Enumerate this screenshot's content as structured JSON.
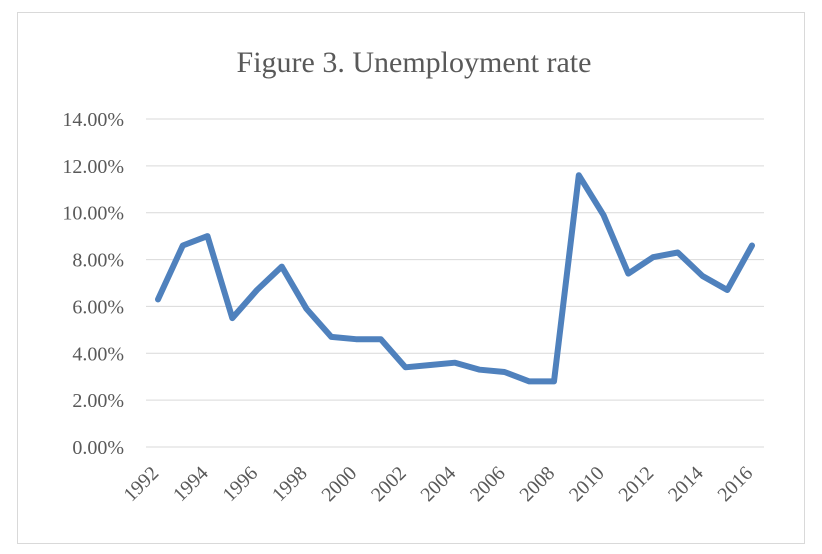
{
  "chart_data": {
    "type": "line",
    "title": "Figure 3. Unemployment rate",
    "xlabel": "",
    "ylabel": "",
    "ylim": [
      0,
      0.14
    ],
    "y_ticks": [
      "0.00%",
      "2.00%",
      "4.00%",
      "6.00%",
      "8.00%",
      "10.00%",
      "12.00%",
      "14.00%"
    ],
    "x_tick_labels": [
      "1992",
      "1994",
      "1996",
      "1998",
      "2000",
      "2002",
      "2004",
      "2006",
      "2008",
      "2010",
      "2012",
      "2014",
      "2016"
    ],
    "x": [
      1992,
      1993,
      1994,
      1995,
      1996,
      1997,
      1998,
      1999,
      2000,
      2001,
      2002,
      2003,
      2004,
      2005,
      2006,
      2007,
      2008,
      2009,
      2010,
      2011,
      2012,
      2013,
      2014,
      2015,
      2016
    ],
    "series": [
      {
        "values": [
          0.063,
          0.086,
          0.09,
          0.055,
          0.067,
          0.077,
          0.059,
          0.047,
          0.046,
          0.046,
          0.034,
          0.035,
          0.036,
          0.033,
          0.032,
          0.028,
          0.028,
          0.116,
          0.099,
          0.074,
          0.081,
          0.083,
          0.073,
          0.067,
          0.086
        ],
        "color": "#4f81bd"
      }
    ],
    "grid": true,
    "legend": "none"
  }
}
